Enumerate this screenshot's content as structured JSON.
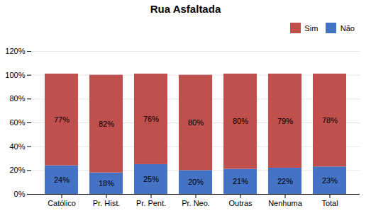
{
  "chart_data": {
    "type": "bar",
    "title": "Rua Asfaltada",
    "categories": [
      "Católico",
      "Pr. Hist.",
      "Pr. Pent.",
      "Pr. Neo.",
      "Outras",
      "Nenhuma",
      "Total"
    ],
    "series": [
      {
        "name": "Não",
        "color": "#4472C4",
        "values": [
          24,
          18,
          25,
          20,
          21,
          22,
          23
        ],
        "value_labels": [
          "24%",
          "18%",
          "25%",
          "20%",
          "21%",
          "22%",
          "23%"
        ]
      },
      {
        "name": "Sim",
        "color": "#C0504D",
        "values": [
          77,
          82,
          76,
          80,
          80,
          79,
          78
        ],
        "value_labels": [
          "77%",
          "82%",
          "76%",
          "80%",
          "80%",
          "79%",
          "78%"
        ]
      }
    ],
    "stacked": true,
    "data_labels": true,
    "ylim": [
      0,
      120
    ],
    "yticks": [
      {
        "value": 0,
        "label": "0%"
      },
      {
        "value": 20,
        "label": "20%"
      },
      {
        "value": 40,
        "label": "40%"
      },
      {
        "value": 60,
        "label": "60%"
      },
      {
        "value": 80,
        "label": "80%"
      },
      {
        "value": 100,
        "label": "100%"
      },
      {
        "value": 120,
        "label": "120%"
      }
    ],
    "grid": true,
    "legend": "upper right"
  }
}
